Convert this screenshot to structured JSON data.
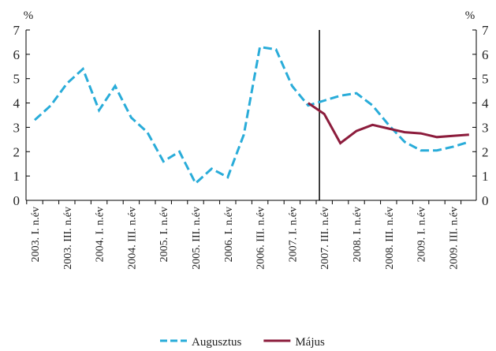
{
  "chart_data": {
    "type": "line",
    "y_unit_label": "%",
    "y2_unit_label": "%",
    "categories": [
      "2003. I. n.év",
      null,
      "2003. III. n.év",
      null,
      "2004. I. n.év",
      null,
      "2004. III. n.év",
      null,
      "2005. I. n.év",
      null,
      "2005. III. n.év",
      null,
      "2006. I. n.év",
      null,
      "2006. III. n.év",
      null,
      "2007. I. n.év",
      null,
      "2007. III. n.év",
      null,
      "2008. I. n.év",
      null,
      "2008. III. n.év",
      null,
      "2009. I. n.év",
      null,
      "2009. III. n.év",
      null
    ],
    "series": [
      {
        "name": "Augusztus",
        "color": "#29acd9",
        "dashed": true,
        "values": [
          3.3,
          3.9,
          4.8,
          5.4,
          3.7,
          4.7,
          3.4,
          2.8,
          1.6,
          2.0,
          0.7,
          1.3,
          0.95,
          2.7,
          6.3,
          6.2,
          4.7,
          3.9,
          4.1,
          4.3,
          4.4,
          3.9,
          3.1,
          2.4,
          2.05,
          2.05,
          2.2,
          2.4
        ]
      },
      {
        "name": "Május",
        "color": "#8c1c3c",
        "dashed": false,
        "values": [
          null,
          null,
          null,
          null,
          null,
          null,
          null,
          null,
          null,
          null,
          null,
          null,
          null,
          null,
          null,
          null,
          null,
          4.0,
          3.55,
          2.35,
          2.85,
          3.1,
          2.95,
          2.8,
          2.75,
          2.6,
          2.65,
          2.7
        ]
      }
    ],
    "ylim": [
      0,
      7
    ],
    "yticks": [
      0,
      1,
      2,
      3,
      4,
      5,
      6,
      7
    ],
    "y2lim": [
      0,
      7
    ],
    "y2ticks": [
      0,
      1,
      2,
      3,
      4,
      5,
      6,
      7
    ],
    "grid": false,
    "legend": "bottom"
  }
}
